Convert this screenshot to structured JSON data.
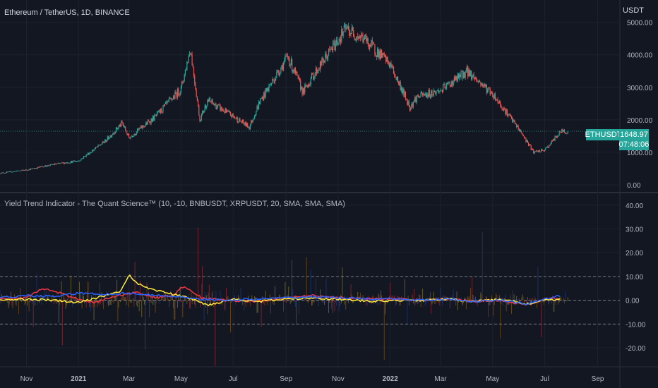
{
  "header": {
    "title": "Ethereum / TetherUS, 1D, BINANCE",
    "currency": "USDT"
  },
  "price_badge": {
    "symbol": "ETHUSDT",
    "price": "1648.97",
    "countdown": "07:48:06"
  },
  "indicator": {
    "title": "Yield Trend Indicator - The Quant Science™ (10, -10, BNBUSDT, XRPUSDT, 20, SMA, SMA, SMA)"
  },
  "colors": {
    "background": "#131722",
    "up_candle": "#26a69a",
    "down_candle": "#ef5350",
    "ma_red": "#f23645",
    "ma_yellow": "#ffeb3b",
    "ma_blue": "#2962ff",
    "price_line": "#26a69a"
  },
  "chart_data": [
    {
      "type": "candlestick",
      "name": "ETHUSDT",
      "ylim": [
        0,
        5600
      ],
      "yticks": [
        "5000.00",
        "4000.00",
        "3000.00",
        "2000.00",
        "1000.00",
        "0.00"
      ],
      "last_price": 1648.97,
      "x_ticks": [
        "Nov",
        "2021",
        "Mar",
        "May",
        "Jul",
        "Sep",
        "Nov",
        "2022",
        "Mar",
        "May",
        "Jul",
        "Sep"
      ],
      "close_series": {
        "dates": [
          "2020-10-01",
          "2020-11-01",
          "2020-12-01",
          "2021-01-01",
          "2021-02-01",
          "2021-02-21",
          "2021-03-01",
          "2021-04-01",
          "2021-05-01",
          "2021-05-12",
          "2021-05-23",
          "2021-06-01",
          "2021-07-01",
          "2021-07-20",
          "2021-08-01",
          "2021-09-03",
          "2021-09-21",
          "2021-10-01",
          "2021-11-10",
          "2021-12-01",
          "2022-01-01",
          "2022-01-24",
          "2022-02-01",
          "2022-03-01",
          "2022-04-01",
          "2022-05-01",
          "2022-06-01",
          "2022-06-18",
          "2022-07-01",
          "2022-07-20"
        ],
        "close": [
          360,
          460,
          620,
          740,
          1340,
          1900,
          1450,
          2100,
          2950,
          4200,
          2000,
          2600,
          2100,
          1780,
          2550,
          3950,
          2850,
          3300,
          4800,
          4500,
          3700,
          2400,
          2700,
          2900,
          3500,
          2800,
          1700,
          1000,
          1070,
          1650
        ]
      }
    },
    {
      "type": "line",
      "name": "Yield Trend Indicator - The Quant Science™",
      "ylim": [
        -28,
        45
      ],
      "yticks": [
        "40.00",
        "30.00",
        "20.00",
        "10.00",
        "0.00",
        "-10.00",
        "-20.00"
      ],
      "upper_threshold": 10,
      "lower_threshold": -10,
      "series": [
        {
          "color": "#f23645",
          "dates": [
            "2020-10-01",
            "2020-11-01",
            "2020-11-20",
            "2020-12-10",
            "2021-01-01",
            "2021-01-20",
            "2021-02-10",
            "2021-03-10",
            "2021-04-01",
            "2021-04-20",
            "2021-05-05",
            "2021-05-25",
            "2021-06-20",
            "2021-08-01",
            "2021-09-01",
            "2021-10-01",
            "2021-11-10",
            "2021-12-10",
            "2022-01-10",
            "2022-02-10",
            "2022-03-10",
            "2022-04-10",
            "2022-05-10",
            "2022-06-10",
            "2022-07-01",
            "2022-07-20"
          ],
          "values": [
            0.5,
            1.0,
            5.0,
            3.0,
            0.5,
            -1.0,
            1.5,
            3.5,
            1.0,
            2.0,
            6.0,
            1.0,
            0.0,
            -0.5,
            1.0,
            2.0,
            1.0,
            0.5,
            0.5,
            0.0,
            0.5,
            -0.5,
            0.0,
            -2.0,
            0.5,
            1.0
          ]
        },
        {
          "color": "#ffeb3b",
          "dates": [
            "2020-10-01",
            "2020-11-01",
            "2020-12-01",
            "2021-01-01",
            "2021-02-01",
            "2021-02-20",
            "2021-03-01",
            "2021-03-10",
            "2021-03-25",
            "2021-04-15",
            "2021-05-10",
            "2021-06-01",
            "2021-07-01",
            "2021-08-01",
            "2021-09-01",
            "2021-10-01",
            "2021-11-01",
            "2021-12-10",
            "2022-01-10",
            "2022-02-10",
            "2022-03-10",
            "2022-04-10",
            "2022-05-10",
            "2022-06-10",
            "2022-07-01",
            "2022-07-20"
          ],
          "values": [
            0.0,
            0.5,
            0.0,
            -1.0,
            2.0,
            4.0,
            11.0,
            7.0,
            5.0,
            3.0,
            1.0,
            -2.0,
            0.5,
            -0.5,
            0.5,
            1.0,
            0.5,
            -0.5,
            0.0,
            0.0,
            0.5,
            -0.5,
            0.5,
            -1.5,
            0.0,
            0.5
          ]
        },
        {
          "color": "#2962ff",
          "dates": [
            "2020-10-01",
            "2020-11-01",
            "2020-12-01",
            "2021-01-01",
            "2021-02-01",
            "2021-03-01",
            "2021-04-01",
            "2021-05-01",
            "2021-05-25",
            "2021-06-20",
            "2021-08-01",
            "2021-09-01",
            "2021-10-01",
            "2021-11-10",
            "2021-12-10",
            "2022-01-10",
            "2022-02-10",
            "2022-03-10",
            "2022-04-10",
            "2022-05-10",
            "2022-06-10",
            "2022-07-01",
            "2022-07-20"
          ],
          "values": [
            1.0,
            2.0,
            1.5,
            3.0,
            2.5,
            3.0,
            2.0,
            1.5,
            0.5,
            0.0,
            0.5,
            1.0,
            1.5,
            1.0,
            0.5,
            0.5,
            0.0,
            0.5,
            -0.5,
            0.0,
            -1.5,
            0.5,
            2.0
          ]
        }
      ]
    }
  ]
}
